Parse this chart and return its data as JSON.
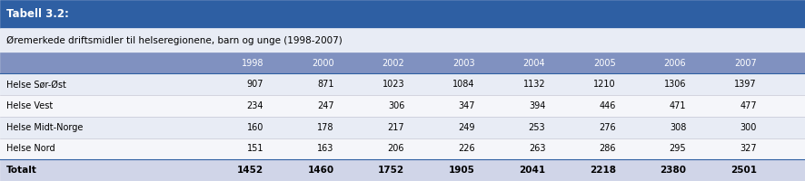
{
  "title_label": "Tabell 3.2:",
  "subtitle": "Øremerkede driftsmidler til helseregionene, barn og unge (1998-2007)",
  "columns": [
    "",
    "1998",
    "2000",
    "2002",
    "2003",
    "2004",
    "2005",
    "2006",
    "2007"
  ],
  "rows": [
    [
      "Helse Sør-Øst",
      "907",
      "871",
      "1023",
      "1084",
      "1132",
      "1210",
      "1306",
      "1397"
    ],
    [
      "Helse Vest",
      "234",
      "247",
      "306",
      "347",
      "394",
      "446",
      "471",
      "477"
    ],
    [
      "Helse Midt-Norge",
      "160",
      "178",
      "217",
      "249",
      "253",
      "276",
      "308",
      "300"
    ],
    [
      "Helse Nord",
      "151",
      "163",
      "206",
      "226",
      "263",
      "286",
      "295",
      "327"
    ]
  ],
  "total_row": [
    "Totalt",
    "1452",
    "1460",
    "1752",
    "1905",
    "2041",
    "2218",
    "2380",
    "2501"
  ],
  "color_title_bg": "#2E5FA3",
  "color_title_text": "#FFFFFF",
  "color_header_bg": "#8091C0",
  "color_header_text": "#FFFFFF",
  "color_row_odd": "#E8ECF5",
  "color_row_even": "#F5F6FA",
  "color_total_bg": "#D0D5E8",
  "color_total_text": "#000000",
  "color_subtitle_bg": "#E8ECF5",
  "color_border": "#2E5FA3",
  "color_separator": "#BBBBCC"
}
